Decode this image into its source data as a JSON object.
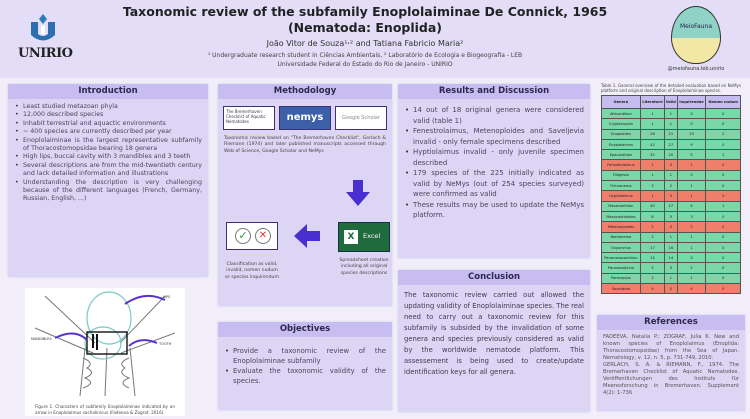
{
  "header": {
    "left_logo": "UNIRIO",
    "title_line1": "Taxonomic review of the subfamily Enoplolaiminae De Connick, 1965",
    "title_line2": "(Nematoda: Enoplida)",
    "authors": "João Vitor de Souza¹˒² and Tatiana Fabricio Maria²",
    "affiliation1": "¹ Undergraduate research student in Ciências Ambientais, ² Laboratório de Ecologia e Biogeografia - LEB",
    "affiliation2": "Universidade Federal do Estado do Rio de Janeiro - UNIRIO",
    "right_logo": "MeioFauna",
    "right_handle": "@meiofauna.leb.unirio"
  },
  "introduction": {
    "title": "Introduction",
    "items": [
      "Least studied metazoan phyla",
      "12,000 described species",
      "Inhabit terrestrial and aquactic environments",
      "~ 400 species are currently described per year",
      "Enoplolaiminae is the largest representative subfamily of Thoracostomopsidae bearing 18 genera",
      "High lips, buccal cavity with 3 mandibles and 3 teeth",
      "Several descriptions are from the mid-twentieth century and lack detailed information and illustrations",
      "Understanding the description is very challenging because of the different languages (French, Germany, Russian, English, ...)"
    ]
  },
  "figure": {
    "labels": {
      "lips": "LIPS",
      "mandibles": "MANDIBLES",
      "tooth": "TOOTH"
    },
    "caption": "Figure 1. Characters of subfamily Enoplolaiminae indicated by an arrow in Enoplolaimus sachalinicus (Fadeeva & Zograf, 2016)."
  },
  "methodology": {
    "title": "Methodology",
    "sources": [
      "The Bremerhaven Checklist of Aquatic Nematodes",
      "nemys",
      "Google Scholar"
    ],
    "description": "Taxonomic review based on \"The Bremerhaven Checklist\", Gerlach & Riemann (1974) and later published manuscripts accessed through Web of Science, Google Scholar and NeMys",
    "excel_label": "Excel",
    "spreadsheet_text": "Spreadsheet creation including all original species descriptions",
    "classification_text": "Classification as valid, invalid, nomen nudum or species inquirendum"
  },
  "objectives": {
    "title": "Objectives",
    "items": [
      "Provide a taxonomic review of the Enoplolaiminae subfamily",
      "Evaluate the taxonomic validity of the species."
    ]
  },
  "results": {
    "title": "Results and Discussion",
    "items": [
      "14 out of 18 original genera were considered valid (table 1)",
      "Fenestrolaimus, Metenoploides and Saveljevia invalid - only female specimens described",
      "Hyptiolaimus invalid - only juvenile specimen described",
      "179 species of the 225 initially indicated as valid by NeMys (out of 254 species surveyed) were confirmed as valid",
      "These results may be used to update the NeMys platform."
    ]
  },
  "conclusion": {
    "title": "Conclusion",
    "text": "The taxonomic review carried out allowed the updating validity of Enoplolaiminae species. The real need to carry out a taxonomic review for this subfamily is subsided by the invalidation of some genera and species previously considered as valid by the worldwide nematode platform. This assessement is being used to create/update identification keys for all genera."
  },
  "table": {
    "caption": "Table 1. General overview of the detailed evaluation based on NeMys platform and original description of Enoplolaiminae species.",
    "headers": [
      "Genera",
      "Literature",
      "Valid",
      "Inquirendae",
      "Nomen nudum"
    ],
    "rows": [
      {
        "status": "valid",
        "cells": [
          "Africanthion",
          "1",
          "1",
          "0",
          "0"
        ]
      },
      {
        "status": "valid",
        "cells": [
          "Cryptenoplus",
          "1",
          "1",
          "0",
          "0"
        ]
      },
      {
        "status": "valid",
        "cells": [
          "Enoploides",
          "28",
          "21",
          "19",
          "2"
        ]
      },
      {
        "status": "valid",
        "cells": [
          "Enoplolaimus",
          "42",
          "27",
          "9",
          "0"
        ]
      },
      {
        "status": "valid",
        "cells": [
          "Epacanthion",
          "32",
          "20",
          "5",
          "1"
        ]
      },
      {
        "status": "invalid",
        "cells": [
          "Fenestrolaimus",
          "1",
          "0",
          "1",
          "0"
        ]
      },
      {
        "status": "valid",
        "cells": [
          "Filipjevia",
          "1",
          "1",
          "0",
          "0"
        ]
      },
      {
        "status": "valid",
        "cells": [
          "Fleuronema",
          "3",
          "2",
          "1",
          "0"
        ]
      },
      {
        "status": "invalid",
        "cells": [
          "Hyptiolaimus",
          "1",
          "0",
          "1",
          "0"
        ]
      },
      {
        "status": "valid",
        "cells": [
          "Mesacanthion",
          "40",
          "27",
          "4",
          "1"
        ]
      },
      {
        "status": "valid",
        "cells": [
          "Mesacanthoides",
          "8",
          "5",
          "3",
          "0"
        ]
      },
      {
        "status": "invalid",
        "cells": [
          "Metenoploides",
          "2",
          "0",
          "2",
          "0"
        ]
      },
      {
        "status": "valid",
        "cells": [
          "Nemanema",
          "2",
          "1",
          "1",
          "0"
        ]
      },
      {
        "status": "valid",
        "cells": [
          "Oxyonchus",
          "17",
          "16",
          "1",
          "0"
        ]
      },
      {
        "status": "valid",
        "cells": [
          "Paramesacanthion",
          "14",
          "14",
          "0",
          "0"
        ]
      },
      {
        "status": "valid",
        "cells": [
          "Parasaveljevia",
          "5",
          "3",
          "2",
          "0"
        ]
      },
      {
        "status": "valid",
        "cells": [
          "Parenoplus",
          "2",
          "1",
          "1",
          "0"
        ]
      },
      {
        "status": "invalid",
        "cells": [
          "Saveljevia",
          "4",
          "0",
          "4",
          "0"
        ]
      }
    ]
  },
  "references": {
    "title": "References",
    "ref1": "FADEEVA, Natalia P.; ZOGRAF, Julia K. New and known species of Enoplolaimus (Enoplida: Thoracostomopsidae) from the Sea of Japan. Nematology, v. 12, n. 5, p. 731-749, 2010.",
    "ref2": "GERLACH, S. A. & RIEMANN, F., 1974. The Bremerhaven Checklist of Aquatic Nematodes. Veröffentlichungen des Instituts für Meeresforschung in Bremerhaven. Supplement 4(2): 1-736"
  },
  "colors": {
    "panel": "#dcd5f3",
    "panel_header": "#c8bdf0",
    "valid_row": "#79d7a8",
    "invalid_row": "#ef7f6a",
    "arrow": "#4a2fd0"
  }
}
